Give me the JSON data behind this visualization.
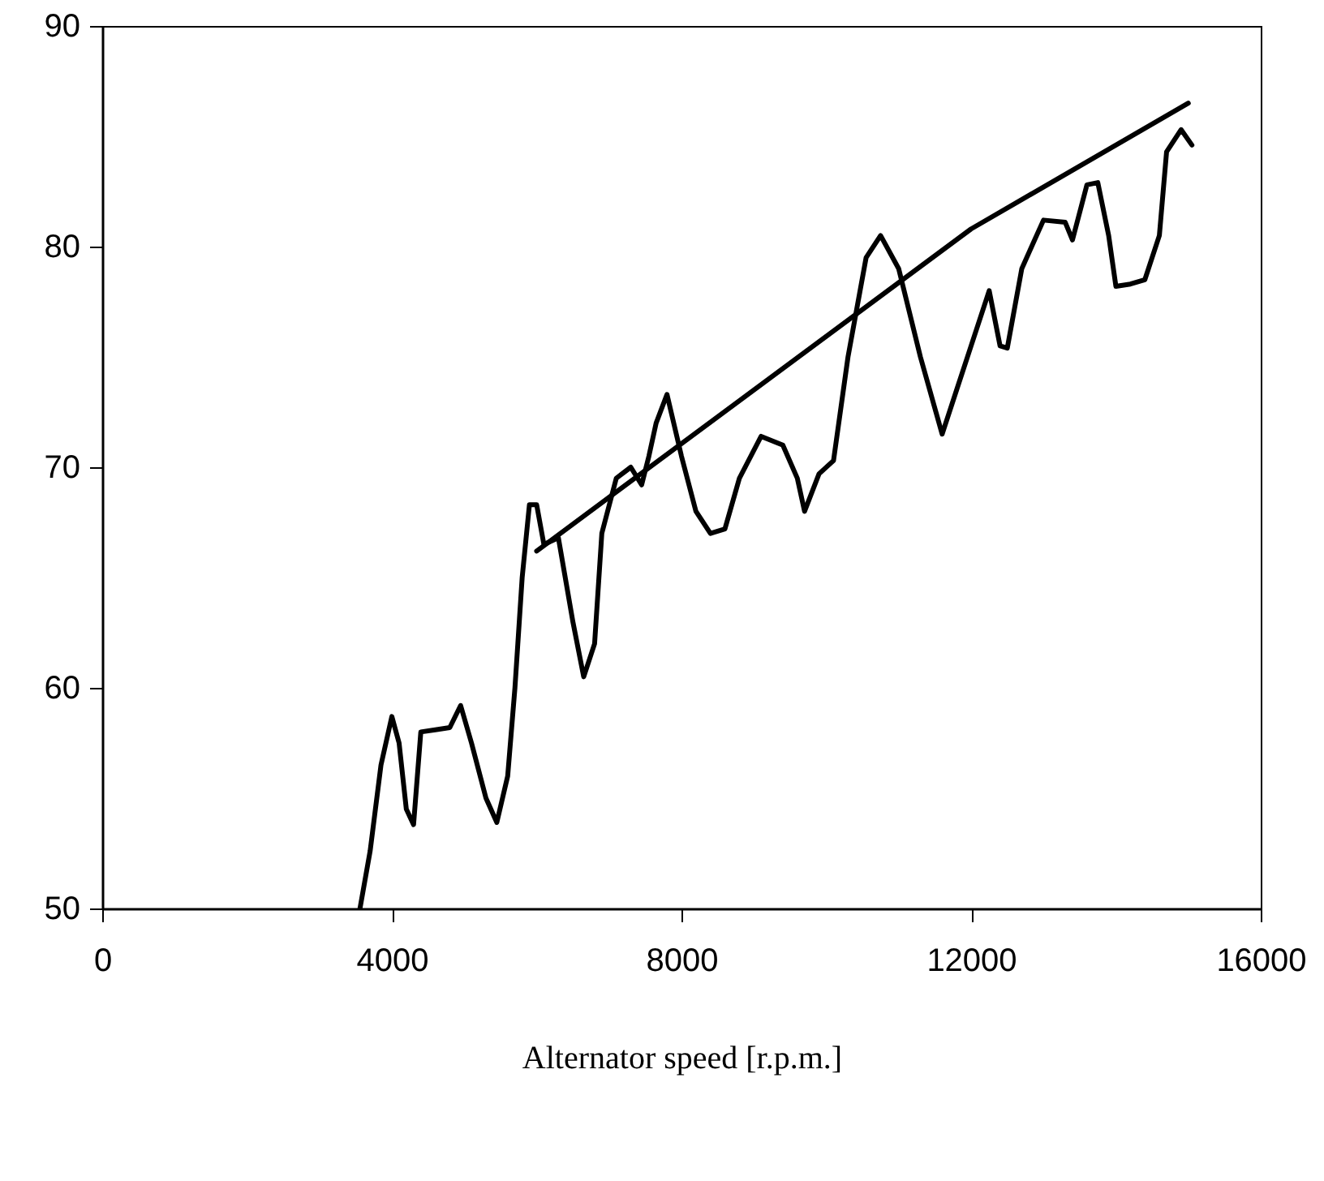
{
  "chart_data": {
    "type": "line",
    "xlabel": "Alternator speed [r.p.m.]",
    "xlim": [
      0,
      16000
    ],
    "xticks": [
      0,
      4000,
      8000,
      12000,
      16000
    ],
    "ylim": [
      50,
      90
    ],
    "yticks": [
      50,
      60,
      70,
      80,
      90
    ],
    "grid": false,
    "series": [
      {
        "color": "#000000",
        "x": [
          3560,
          3700,
          3850,
          4000,
          4100,
          4200,
          4300,
          4400,
          4600,
          4800,
          4950,
          5100,
          5300,
          5450,
          5600,
          5700,
          5800,
          5900,
          6000,
          6100,
          6300,
          6500,
          6650,
          6800,
          6900,
          7100,
          7300,
          7450,
          7550,
          7650,
          7800,
          8000,
          8200,
          8400,
          8600,
          8800,
          9100,
          9400,
          9600,
          9700,
          9900,
          10100,
          10300,
          10550,
          10750,
          11000,
          11300,
          11600,
          11800,
          12000,
          12250,
          12400,
          12500,
          12700,
          13000,
          13300,
          13400,
          13600,
          13750,
          13900,
          14000,
          14200,
          14400,
          14600,
          14700,
          14900,
          15050
        ],
        "values": [
          50,
          52.6,
          56.5,
          58.7,
          57.5,
          54.5,
          53.8,
          58,
          58.1,
          58.2,
          59.2,
          57.5,
          55,
          53.9,
          56,
          60,
          65,
          68.3,
          68.3,
          66.5,
          66.8,
          63,
          60.5,
          62,
          67,
          69.5,
          70,
          69.2,
          70.5,
          72,
          73.3,
          70.5,
          68,
          67,
          67.2,
          69.5,
          71.4,
          71,
          69.5,
          68,
          69.7,
          70.3,
          75,
          79.5,
          80.5,
          79,
          75,
          71.5,
          73.5,
          75.5,
          78,
          75.5,
          75.4,
          79,
          81.2,
          81.1,
          80.3,
          82.8,
          82.9,
          80.5,
          78.2,
          78.3,
          78.5,
          80.5,
          84.3,
          85.3,
          84.6
        ]
      },
      {
        "color": "#000000",
        "x": [
          6000,
          12000,
          15000
        ],
        "values": [
          66.2,
          80.8,
          86.5
        ]
      }
    ]
  }
}
